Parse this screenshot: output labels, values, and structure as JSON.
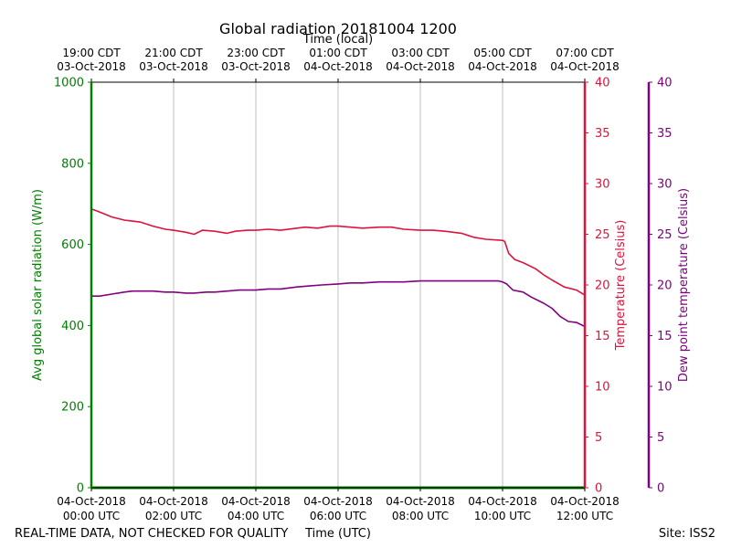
{
  "chart_data": {
    "type": "line",
    "title": "Global radiation 20181004 1200",
    "top_axis_label": "Time (local)",
    "xlabel": "Time (UTC)",
    "x_range_hours_utc": [
      0,
      12
    ],
    "bottom_ticks": [
      {
        "hour": 0,
        "line1": "04-Oct-2018",
        "line2": "00:00 UTC"
      },
      {
        "hour": 2,
        "line1": "04-Oct-2018",
        "line2": "02:00 UTC"
      },
      {
        "hour": 4,
        "line1": "04-Oct-2018",
        "line2": "04:00 UTC"
      },
      {
        "hour": 6,
        "line1": "04-Oct-2018",
        "line2": "06:00 UTC"
      },
      {
        "hour": 8,
        "line1": "04-Oct-2018",
        "line2": "08:00 UTC"
      },
      {
        "hour": 10,
        "line1": "04-Oct-2018",
        "line2": "10:00 UTC"
      },
      {
        "hour": 12,
        "line1": "04-Oct-2018",
        "line2": "12:00 UTC"
      }
    ],
    "top_ticks": [
      {
        "hour": 0,
        "line1": "19:00 CDT",
        "line2": "03-Oct-2018"
      },
      {
        "hour": 2,
        "line1": "21:00 CDT",
        "line2": "03-Oct-2018"
      },
      {
        "hour": 4,
        "line1": "23:00 CDT",
        "line2": "03-Oct-2018"
      },
      {
        "hour": 6,
        "line1": "01:00 CDT",
        "line2": "04-Oct-2018"
      },
      {
        "hour": 8,
        "line1": "03:00 CDT",
        "line2": "04-Oct-2018"
      },
      {
        "hour": 10,
        "line1": "05:00 CDT",
        "line2": "04-Oct-2018"
      },
      {
        "hour": 12,
        "line1": "07:00 CDT",
        "line2": "04-Oct-2018"
      }
    ],
    "left_axis": {
      "label": "Avg global solar radiation (W/m)",
      "ylim": [
        0,
        1000
      ],
      "ticks": [
        0,
        200,
        400,
        600,
        800,
        1000
      ],
      "color": "#008000"
    },
    "right_axis": {
      "label": "Temperature (Celsius)",
      "ylim": [
        0,
        40
      ],
      "ticks": [
        0,
        5,
        10,
        15,
        20,
        25,
        30,
        35,
        40
      ],
      "color": "#dc143c"
    },
    "far_right_axis": {
      "label": "Dew point temperature (Celsius)",
      "ylim": [
        0,
        40
      ],
      "ticks": [
        0,
        5,
        10,
        15,
        20,
        25,
        30,
        35,
        40
      ],
      "color": "#800080"
    },
    "series": [
      {
        "name": "Avg global solar radiation",
        "axis": "left",
        "color": "#008000",
        "x": [
          0,
          12
        ],
        "y": [
          0,
          0
        ]
      },
      {
        "name": "Temperature",
        "axis": "right",
        "color": "#dc143c",
        "x": [
          0,
          0.2,
          0.5,
          0.8,
          1.0,
          1.2,
          1.5,
          1.8,
          2.0,
          2.3,
          2.5,
          2.7,
          3.0,
          3.3,
          3.5,
          3.8,
          4.0,
          4.3,
          4.6,
          5.0,
          5.2,
          5.5,
          5.8,
          6.0,
          6.3,
          6.6,
          7.0,
          7.3,
          7.6,
          8.0,
          8.3,
          8.6,
          9.0,
          9.3,
          9.6,
          10.0,
          10.05,
          10.15,
          10.3,
          10.5,
          10.8,
          11.0,
          11.2,
          11.5,
          11.8,
          12.0
        ],
        "y": [
          27.5,
          27.2,
          26.7,
          26.4,
          26.3,
          26.2,
          25.8,
          25.5,
          25.4,
          25.2,
          25.0,
          25.4,
          25.3,
          25.1,
          25.3,
          25.4,
          25.4,
          25.5,
          25.4,
          25.6,
          25.7,
          25.6,
          25.8,
          25.8,
          25.7,
          25.6,
          25.7,
          25.7,
          25.5,
          25.4,
          25.4,
          25.3,
          25.1,
          24.7,
          24.5,
          24.4,
          24.3,
          23.1,
          22.5,
          22.2,
          21.6,
          21.0,
          20.5,
          19.8,
          19.5,
          19.0
        ]
      },
      {
        "name": "Dew point temperature",
        "axis": "far_right",
        "color": "#800080",
        "x": [
          0,
          0.2,
          0.5,
          0.8,
          1.0,
          1.2,
          1.5,
          1.8,
          2.0,
          2.3,
          2.5,
          2.8,
          3.0,
          3.3,
          3.6,
          4.0,
          4.3,
          4.6,
          5.0,
          5.3,
          5.6,
          6.0,
          6.3,
          6.6,
          7.0,
          7.3,
          7.6,
          8.0,
          8.3,
          8.6,
          9.0,
          9.3,
          9.6,
          9.9,
          10.0,
          10.1,
          10.25,
          10.5,
          10.7,
          11.0,
          11.2,
          11.4,
          11.6,
          11.8,
          12.0
        ],
        "y": [
          18.9,
          18.9,
          19.1,
          19.3,
          19.4,
          19.4,
          19.4,
          19.3,
          19.3,
          19.2,
          19.2,
          19.3,
          19.3,
          19.4,
          19.5,
          19.5,
          19.6,
          19.6,
          19.8,
          19.9,
          20.0,
          20.1,
          20.2,
          20.2,
          20.3,
          20.3,
          20.3,
          20.4,
          20.4,
          20.4,
          20.4,
          20.4,
          20.4,
          20.4,
          20.3,
          20.1,
          19.5,
          19.3,
          18.8,
          18.2,
          17.7,
          16.9,
          16.4,
          16.3,
          15.9
        ]
      }
    ]
  },
  "footer": {
    "left_note": "REAL-TIME DATA, NOT CHECKED FOR QUALITY",
    "site": "Site: ISS2"
  }
}
